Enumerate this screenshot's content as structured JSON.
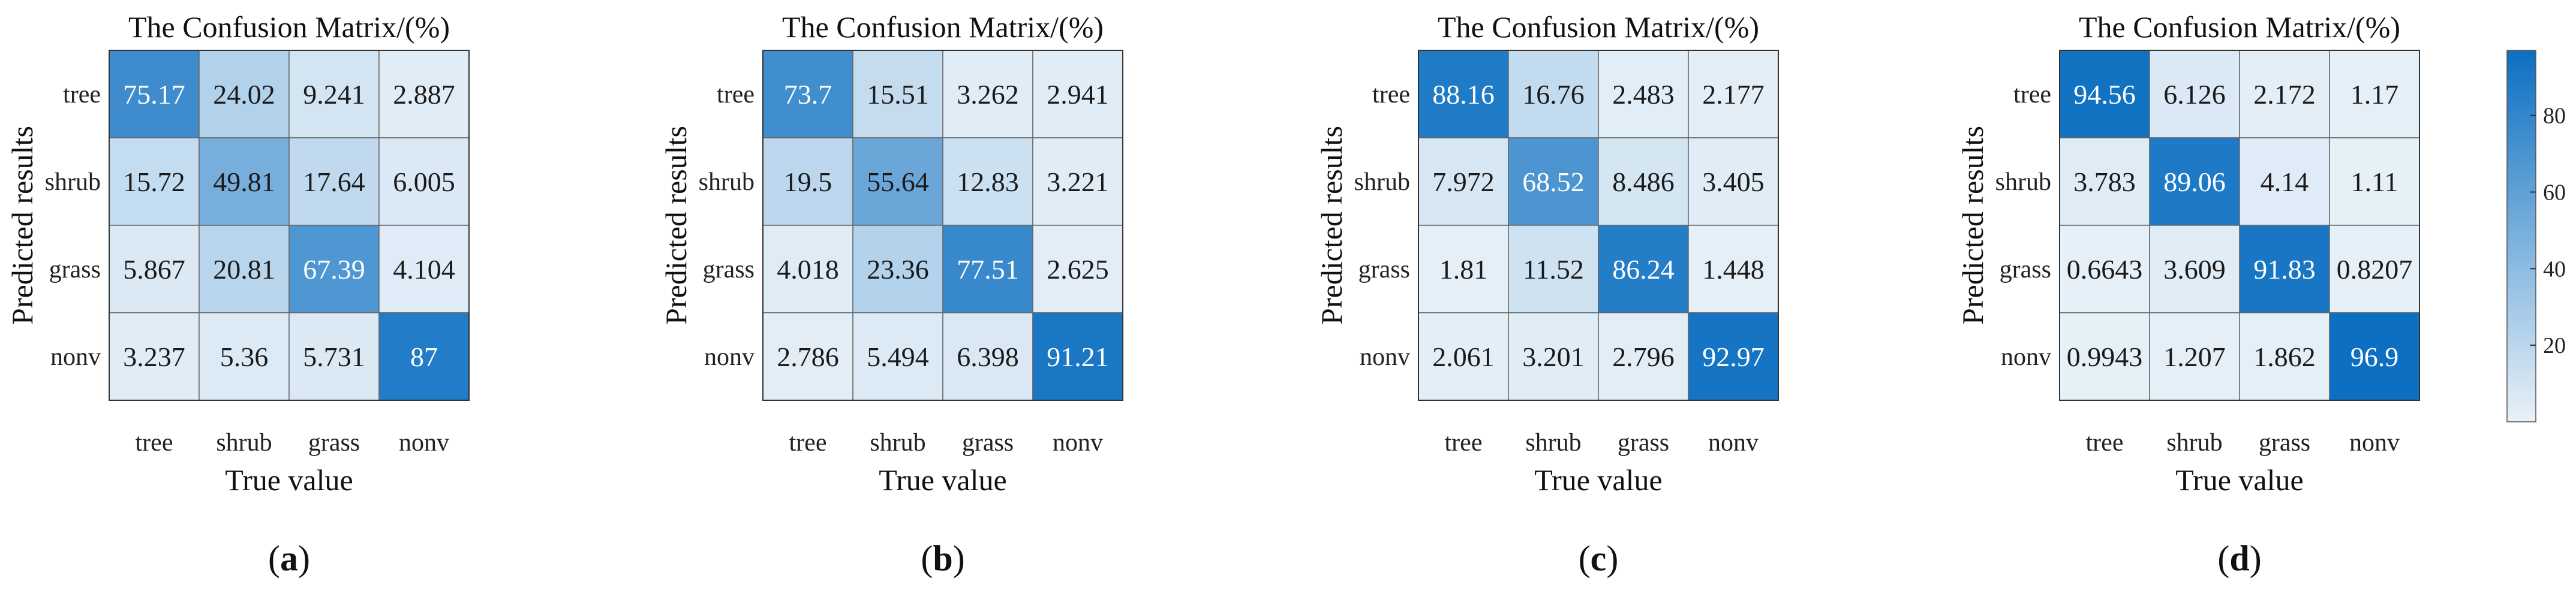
{
  "chart_data": [
    {
      "type": "heatmap",
      "panel_label": "a",
      "title": "The Confusion Matrix/(%)",
      "xlabel": "True value",
      "ylabel": "Predicted results",
      "x_categories": [
        "tree",
        "shrub",
        "grass",
        "nonv"
      ],
      "y_categories": [
        "tree",
        "shrub",
        "grass",
        "nonv"
      ],
      "values": [
        [
          "75.17",
          "24.02",
          "9.241",
          "2.887"
        ],
        [
          "15.72",
          "49.81",
          "17.64",
          "6.005"
        ],
        [
          "5.867",
          "20.81",
          "67.39",
          "4.104"
        ],
        [
          "3.237",
          "5.36",
          "5.731",
          "87"
        ]
      ]
    },
    {
      "type": "heatmap",
      "panel_label": "b",
      "title": "The Confusion Matrix/(%)",
      "xlabel": "True value",
      "ylabel": "Predicted results",
      "x_categories": [
        "tree",
        "shrub",
        "grass",
        "nonv"
      ],
      "y_categories": [
        "tree",
        "shrub",
        "grass",
        "nonv"
      ],
      "values": [
        [
          "73.7",
          "15.51",
          "3.262",
          "2.941"
        ],
        [
          "19.5",
          "55.64",
          "12.83",
          "3.221"
        ],
        [
          "4.018",
          "23.36",
          "77.51",
          "2.625"
        ],
        [
          "2.786",
          "5.494",
          "6.398",
          "91.21"
        ]
      ]
    },
    {
      "type": "heatmap",
      "panel_label": "c",
      "title": "The Confusion Matrix/(%)",
      "xlabel": "True value",
      "ylabel": "Predicted results",
      "x_categories": [
        "tree",
        "shrub",
        "grass",
        "nonv"
      ],
      "y_categories": [
        "tree",
        "shrub",
        "grass",
        "nonv"
      ],
      "values": [
        [
          "88.16",
          "16.76",
          "2.483",
          "2.177"
        ],
        [
          "7.972",
          "68.52",
          "8.486",
          "3.405"
        ],
        [
          "1.81",
          "11.52",
          "86.24",
          "1.448"
        ],
        [
          "2.061",
          "3.201",
          "2.796",
          "92.97"
        ]
      ]
    },
    {
      "type": "heatmap",
      "panel_label": "d",
      "title": "The Confusion Matrix/(%)",
      "xlabel": "True value",
      "ylabel": "Predicted results",
      "x_categories": [
        "tree",
        "shrub",
        "grass",
        "nonv"
      ],
      "y_categories": [
        "tree",
        "shrub",
        "grass",
        "nonv"
      ],
      "values": [
        [
          "94.56",
          "6.126",
          "2.172",
          "1.17"
        ],
        [
          "3.783",
          "89.06",
          "4.14",
          "1.11"
        ],
        [
          "0.6643",
          "3.609",
          "91.83",
          "0.8207"
        ],
        [
          "0.9943",
          "1.207",
          "1.862",
          "96.9"
        ]
      ]
    }
  ],
  "colorbar": {
    "ticks": [
      "20",
      "40",
      "60",
      "80"
    ],
    "range": [
      0,
      97
    ],
    "color_low": "#e8f1f8",
    "color_high": "#0c6fc1"
  }
}
